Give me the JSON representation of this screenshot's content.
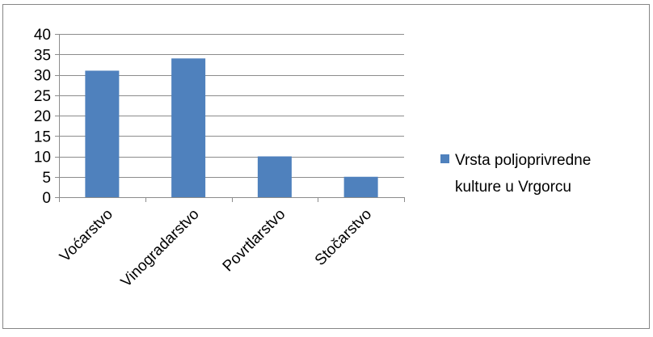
{
  "chart_data": {
    "type": "bar",
    "title": "",
    "xlabel": "",
    "ylabel": "",
    "categories": [
      "Voćarstvo",
      "Vinogradarstvo",
      "Povrtlarstvo",
      "Stočarstvo"
    ],
    "series": [
      {
        "name": "Vrsta poljoprivredne kulture u Vrgorcu",
        "values": [
          31,
          34,
          10,
          5
        ],
        "color": "#4F81BD"
      }
    ],
    "ylim": [
      0,
      40
    ],
    "yticks": [
      0,
      5,
      10,
      15,
      20,
      25,
      30,
      35,
      40
    ],
    "grid": true,
    "legend_position": "right",
    "legend_lines": [
      "Vrsta poljoprivredne",
      "kulture u Vrgorcu"
    ]
  },
  "colors": {
    "bar": "#4F81BD",
    "grid": "#8C8C8C",
    "frame_border": "#868686"
  }
}
